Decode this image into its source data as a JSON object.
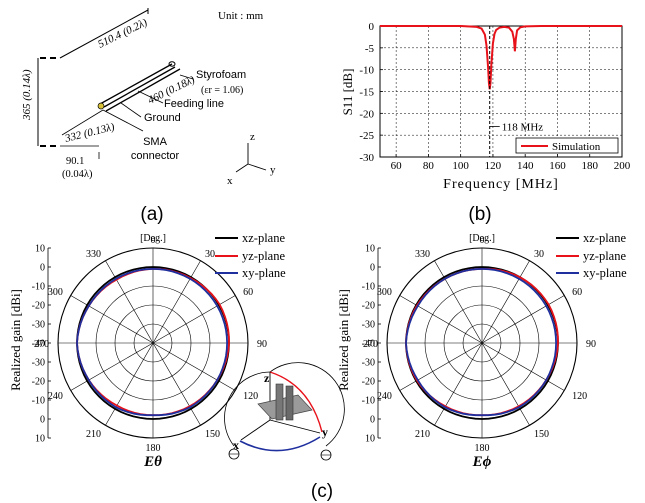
{
  "panel_a": {
    "caption": "(a)",
    "unit": "Unit : mm",
    "dim_top": "510.4 (0.2λ)",
    "dim_height": "365 (0.14λ)",
    "dim_mid": "460 (0.18λ)",
    "dim_lower": "332 (0.13λ)",
    "dim_gap_value": "90.1",
    "dim_gap_lambda": "(0.04λ)",
    "styrofoam": "Styrofoam",
    "permittivity": "(εr = 1.06)",
    "feeding_line": "Feeding line",
    "ground": "Ground",
    "sma1": "SMA",
    "sma2": "connector",
    "axis_z": "z",
    "axis_y": "y",
    "axis_x": "x"
  },
  "panel_b": {
    "caption": "(b)"
  },
  "panel_c": {
    "caption": "(c)",
    "left_title": "Eθ",
    "right_title": "Eϕ",
    "deg_label": "[Deg.]",
    "angle_labels": [
      "0",
      "30",
      "60",
      "90",
      "120",
      "150",
      "180",
      "210",
      "240",
      "270",
      "300",
      "330"
    ],
    "axis_title": "Realized gain [dBi]",
    "radial_ticks": [
      "10",
      "0",
      "-10",
      "-20",
      "-30",
      "-40",
      "-30",
      "-20",
      "-10",
      "0",
      "10"
    ],
    "legend": [
      "xz-plane",
      "yz-plane",
      "xy-plane"
    ],
    "inset_z": "z",
    "inset_x": "x",
    "inset_y": "y"
  },
  "colors": {
    "xz": "#000000",
    "yz": "#e8121b",
    "xy": "#1f2f9e",
    "s11": "#e8121b"
  },
  "chart_data": [
    {
      "type": "line",
      "title": "",
      "xlabel": "Frequency [MHz]",
      "ylabel": "S11 [dB]",
      "xlim": [
        50,
        200
      ],
      "ylim": [
        -30,
        0
      ],
      "xticks": [
        "60",
        "80",
        "100",
        "120",
        "140",
        "160",
        "180",
        "200"
      ],
      "yticks": [
        "0",
        "-5",
        "-10",
        "-15",
        "-20",
        "-25",
        "-30"
      ],
      "grid": true,
      "legend_position": "bottom-right",
      "annotation": "118 MHz",
      "annotation_x": 118,
      "series": [
        {
          "name": "Simulation",
          "x": [
            50,
            100,
            110,
            113,
            115,
            116,
            117,
            117.5,
            118,
            118.5,
            119,
            120,
            121,
            122,
            124,
            127,
            130,
            132,
            133,
            133.6,
            134.2,
            135,
            137,
            140,
            150,
            160,
            180,
            200
          ],
          "y": [
            0,
            0,
            -0.2,
            -0.6,
            -2.0,
            -4.5,
            -9.5,
            -13.0,
            -14.5,
            -13.0,
            -9.0,
            -4.0,
            -1.8,
            -0.9,
            -0.4,
            -0.2,
            -0.4,
            -1.3,
            -3.0,
            -5.8,
            -3.0,
            -1.0,
            -0.3,
            -0.1,
            0,
            0,
            0,
            0
          ]
        }
      ]
    },
    {
      "type": "polar",
      "title": "Eθ",
      "ylabel": "Realized gain [dBi]",
      "rlim": [
        -40,
        10
      ],
      "angle_unit": "deg",
      "series": [
        {
          "name": "xz-plane",
          "angles": [
            0,
            30,
            60,
            90,
            120,
            150,
            180,
            210,
            240,
            270,
            300,
            330
          ],
          "values": [
            0,
            0,
            0,
            0,
            0,
            0,
            0,
            0,
            0,
            0,
            0,
            0
          ]
        },
        {
          "name": "yz-plane",
          "angles": [
            0,
            30,
            60,
            90,
            120,
            150,
            180,
            210,
            240,
            270,
            300,
            330
          ],
          "values": [
            -1,
            -0.5,
            0.5,
            0,
            -1,
            -1.5,
            -2,
            -2,
            -1,
            0,
            -1,
            -1.5
          ]
        },
        {
          "name": "xy-plane",
          "angles": [
            0,
            30,
            60,
            90,
            120,
            150,
            180,
            210,
            240,
            270,
            300,
            330
          ],
          "values": [
            -1,
            -1,
            -1,
            -1,
            -1,
            -1,
            -2,
            -1,
            -1,
            0,
            -1,
            -1
          ]
        }
      ]
    },
    {
      "type": "polar",
      "title": "Eϕ",
      "ylabel": "Realized gain [dBi]",
      "rlim": [
        -40,
        10
      ],
      "angle_unit": "deg",
      "series": [
        {
          "name": "xz-plane",
          "angles": [
            0,
            30,
            60,
            90,
            120,
            150,
            180,
            210,
            240,
            270,
            300,
            330
          ],
          "values": [
            0,
            0,
            0,
            0,
            0,
            0,
            0,
            0,
            0,
            0,
            0,
            0
          ]
        },
        {
          "name": "yz-plane",
          "angles": [
            0,
            30,
            60,
            90,
            120,
            150,
            180,
            210,
            240,
            270,
            300,
            330
          ],
          "values": [
            -1,
            0,
            0.5,
            0,
            -1,
            -1.5,
            -2,
            -1.5,
            -0.5,
            0,
            -0.5,
            -1
          ]
        },
        {
          "name": "xy-plane",
          "angles": [
            0,
            30,
            60,
            90,
            120,
            150,
            180,
            210,
            240,
            270,
            300,
            330
          ],
          "values": [
            -1,
            -1,
            -1,
            -1,
            -1,
            -1,
            -2,
            -1,
            -1,
            0,
            -1,
            -1
          ]
        }
      ]
    }
  ]
}
